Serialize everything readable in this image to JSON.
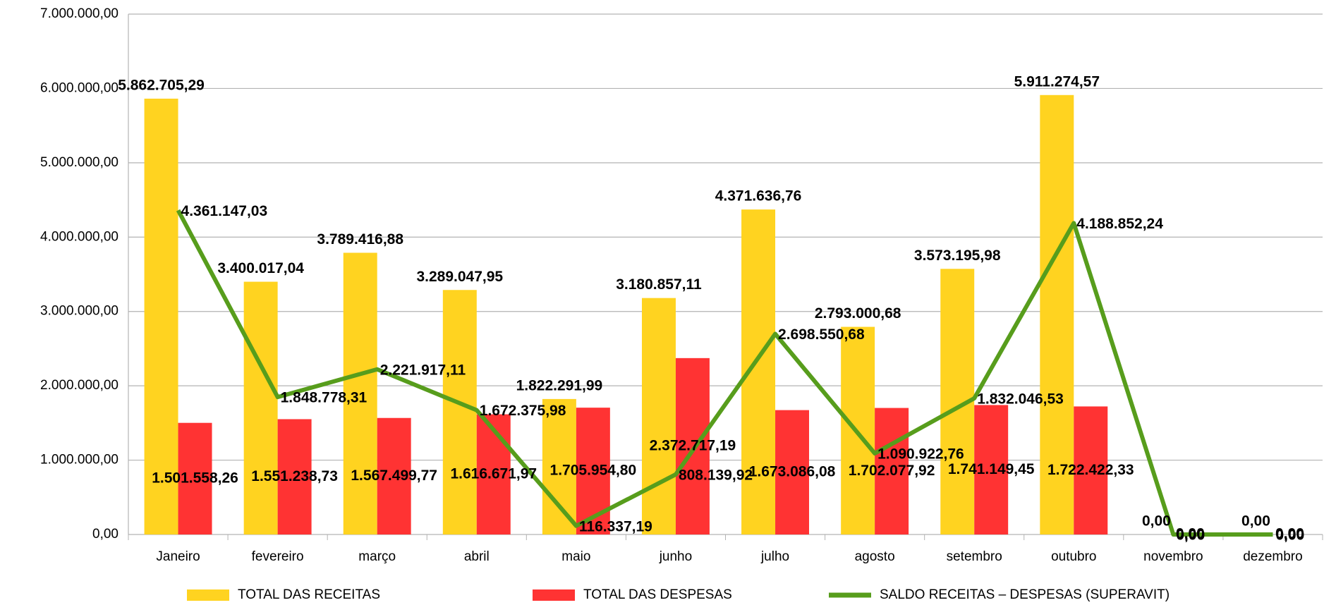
{
  "chart_data": {
    "type": "bar",
    "categories": [
      "Janeiro",
      "fevereiro",
      "março",
      "abril",
      "maio",
      "junho",
      "julho",
      "agosto",
      "setembro",
      "outubro",
      "novembro",
      "dezembro"
    ],
    "ylim": [
      0,
      7000000
    ],
    "yticks": [
      {
        "value": 0,
        "label": "0,00"
      },
      {
        "value": 1000000,
        "label": "1.000.000,00"
      },
      {
        "value": 2000000,
        "label": "2.000.000,00"
      },
      {
        "value": 3000000,
        "label": "3.000.000,00"
      },
      {
        "value": 4000000,
        "label": "4.000.000,00"
      },
      {
        "value": 5000000,
        "label": "5.000.000,00"
      },
      {
        "value": 6000000,
        "label": "6.000.000,00"
      },
      {
        "value": 7000000,
        "label": "7.000.000,00"
      }
    ],
    "grid": true,
    "series": [
      {
        "name": "TOTAL DAS RECEITAS",
        "type": "bar",
        "color": "#ffd320",
        "values": [
          5862705.29,
          3400017.04,
          3789416.88,
          3289047.95,
          1822291.99,
          3180857.11,
          4371636.76,
          2793000.68,
          3573195.98,
          5911274.57,
          0,
          0
        ],
        "value_labels": [
          "5.862.705,29",
          "3.400.017,04",
          "3.789.416,88",
          "3.289.047,95",
          "1.822.291,99",
          "3.180.857,11",
          "4.371.636,76",
          "2.793.000,68",
          "3.573.195,98",
          "5.911.274,57",
          "0,00",
          "0,00"
        ]
      },
      {
        "name": "TOTAL DAS DESPESAS",
        "type": "bar",
        "color": "#ff3333",
        "values": [
          1501558.26,
          1551238.73,
          1567499.77,
          1616671.97,
          1705954.8,
          2372717.19,
          1673086.08,
          1702077.92,
          1741149.45,
          1722422.33,
          0,
          0
        ],
        "value_labels": [
          "1.501.558,26",
          "1.551.238,73",
          "1.567.499,77",
          "1.616.671,97",
          "1.705.954,80",
          "2.372.717,19",
          "1.673.086,08",
          "1.702.077,92",
          "1.741.149,45",
          "1.722.422,33",
          "0,00",
          "0,00"
        ]
      },
      {
        "name": "SALDO RECEITAS – DESPESAS (SUPERAVIT)",
        "type": "line",
        "color": "#579d1c",
        "values": [
          4361147.03,
          1848778.31,
          2221917.11,
          1672375.98,
          116337.19,
          808139.92,
          2698550.68,
          1090922.76,
          1832046.53,
          4188852.24,
          0,
          0
        ],
        "value_labels": [
          "4.361.147,03",
          "1.848.778,31",
          "2.221.917,11",
          "1.672.375,98",
          "116.337,19",
          "808.139,92",
          "2.698.550,68",
          "1.090.922,76",
          "1.832.046,53",
          "4.188.852,24",
          "0,00",
          "0,00"
        ]
      }
    ]
  }
}
